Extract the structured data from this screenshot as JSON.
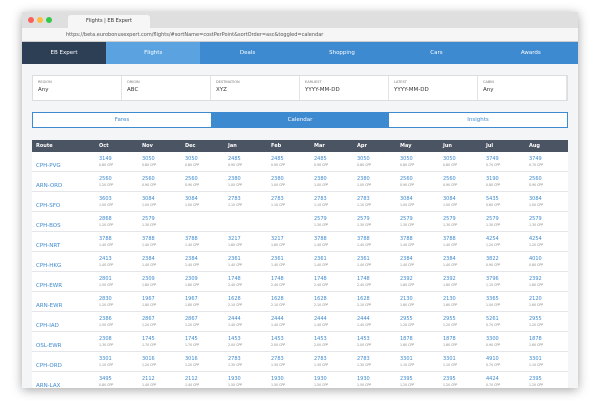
{
  "browser": {
    "tab_title": "Flights | EB Expert",
    "url": "https://beta.eurobonusexpert.com/flights/#sortName=costPerPoint&sortOrder=asc&toggled=calendar"
  },
  "nav": [
    "EB Expert",
    "Flights",
    "Deals",
    "Shopping",
    "Cars",
    "Awards"
  ],
  "filters": [
    {
      "label": "REGION",
      "value": "Any"
    },
    {
      "label": "ORIGIN",
      "value": "ABC"
    },
    {
      "label": "DESTINATION",
      "value": "XYZ"
    },
    {
      "label": "EARLIEST",
      "value": "YYYY-MM-DD"
    },
    {
      "label": "LATEST",
      "value": "YYYY-MM-DD"
    },
    {
      "label": "CABIN",
      "value": "Any"
    }
  ],
  "tabs": [
    "Fares",
    "Calendar",
    "Insights"
  ],
  "table": {
    "header": [
      "Route",
      "Oct",
      "Nov",
      "Dec",
      "Jan",
      "Feb",
      "Mar",
      "Apr",
      "May",
      "Jun",
      "Jul",
      "Aug"
    ],
    "rows": [
      {
        "route": "CPH-PVG",
        "cells": [
          [
            "3149",
            "0.80 CPP"
          ],
          [
            "3050",
            "0.80 CPP"
          ],
          [
            "3050",
            "0.80 CPP"
          ],
          [
            "2485",
            "0.90 CPP"
          ],
          [
            "2485",
            "0.90 CPP"
          ],
          [
            "2485",
            "0.90 CPP"
          ],
          [
            "3050",
            "0.80 CPP"
          ],
          [
            "3050",
            "0.80 CPP"
          ],
          [
            "3050",
            "0.80 CPP"
          ],
          [
            "3749",
            "0.70 CPP"
          ],
          [
            "3749",
            "0.70 CPP"
          ]
        ]
      },
      {
        "route": "ARN-ORD",
        "cells": [
          [
            "2560",
            "1.20 CPP"
          ],
          [
            "2560",
            "0.90 CPP"
          ],
          [
            "2560",
            "0.90 CPP"
          ],
          [
            "2380",
            "1.00 CPP"
          ],
          [
            "2380",
            "1.00 CPP"
          ],
          [
            "2380",
            "1.00 CPP"
          ],
          [
            "2380",
            "1.00 CPP"
          ],
          [
            "2560",
            "0.90 CPP"
          ],
          [
            "2560",
            "0.90 CPP"
          ],
          [
            "3190",
            "0.80 CPP"
          ],
          [
            "2560",
            "0.90 CPP"
          ]
        ]
      },
      {
        "route": "CPH-SFO",
        "cells": [
          [
            "3603",
            "1.00 CPP"
          ],
          [
            "3084",
            "1.00 CPP"
          ],
          [
            "3084",
            "1.00 CPP"
          ],
          [
            "2783",
            "1.10 CPP"
          ],
          [
            "2783",
            "1.10 CPP"
          ],
          [
            "2783",
            "1.10 CPP"
          ],
          [
            "2783",
            "1.10 CPP"
          ],
          [
            "3084",
            "1.00 CPP"
          ],
          [
            "3084",
            "1.00 CPP"
          ],
          [
            "5435",
            "0.60 CPP"
          ],
          [
            "3084",
            "1.00 CPP"
          ]
        ]
      },
      {
        "route": "CPH-BOS",
        "cells": [
          [
            "2868",
            "1.20 CPP"
          ],
          [
            "2579",
            "1.30 CPP"
          ],
          null,
          null,
          null,
          [
            "2579",
            "1.30 CPP"
          ],
          [
            "2579",
            "1.30 CPP"
          ],
          [
            "2579",
            "1.30 CPP"
          ],
          [
            "2579",
            "1.30 CPP"
          ],
          [
            "2579",
            "1.30 CPP"
          ],
          [
            "2579",
            "1.30 CPP"
          ]
        ]
      },
      {
        "route": "CPH-NRT",
        "cells": [
          [
            "3788",
            "1.40 CPP"
          ],
          [
            "3788",
            "1.40 CPP"
          ],
          [
            "3788",
            "1.40 CPP"
          ],
          [
            "3217",
            "1.60 CPP"
          ],
          [
            "3217",
            "1.60 CPP"
          ],
          [
            "3788",
            "1.40 CPP"
          ],
          [
            "3788",
            "1.40 CPP"
          ],
          [
            "3788",
            "1.40 CPP"
          ],
          [
            "3788",
            "1.40 CPP"
          ],
          [
            "4254",
            "1.20 CPP"
          ],
          [
            "4254",
            "1.20 CPP"
          ]
        ]
      },
      {
        "route": "CPH-HKG",
        "cells": [
          [
            "2413",
            "1.40 CPP"
          ],
          [
            "2384",
            "1.40 CPP"
          ],
          [
            "2384",
            "1.40 CPP"
          ],
          [
            "2361",
            "1.40 CPP"
          ],
          [
            "2361",
            "1.40 CPP"
          ],
          [
            "2361",
            "1.40 CPP"
          ],
          [
            "2361",
            "1.40 CPP"
          ],
          [
            "2384",
            "1.40 CPP"
          ],
          [
            "2384",
            "1.40 CPP"
          ],
          [
            "3822",
            "0.90 CPP"
          ],
          [
            "4010",
            "0.80 CPP"
          ]
        ]
      },
      {
        "route": "CPH-EWR",
        "cells": [
          [
            "2801",
            "1.50 CPP"
          ],
          [
            "2309",
            "1.80 CPP"
          ],
          [
            "2309",
            "1.80 CPP"
          ],
          [
            "1748",
            "2.40 CPP"
          ],
          [
            "1748",
            "2.40 CPP"
          ],
          [
            "1748",
            "2.40 CPP"
          ],
          [
            "1748",
            "2.40 CPP"
          ],
          [
            "2392",
            "1.80 CPP"
          ],
          [
            "2392",
            "1.80 CPP"
          ],
          [
            "3796",
            "1.10 CPP"
          ],
          [
            "2392",
            "1.80 CPP"
          ]
        ]
      },
      {
        "route": "ARN-EWR",
        "cells": [
          [
            "2830",
            "1.20 CPP"
          ],
          [
            "1967",
            "1.80 CPP"
          ],
          [
            "1967",
            "1.80 CPP"
          ],
          [
            "1628",
            "2.10 CPP"
          ],
          [
            "1628",
            "2.10 CPP"
          ],
          [
            "1628",
            "2.10 CPP"
          ],
          [
            "1628",
            "2.10 CPP"
          ],
          [
            "2130",
            "1.60 CPP"
          ],
          [
            "2130",
            "1.60 CPP"
          ],
          [
            "3365",
            "1.00 CPP"
          ],
          [
            "2120",
            "1.60 CPP"
          ]
        ]
      },
      {
        "route": "CPH-IAD",
        "cells": [
          [
            "2386",
            "1.50 CPP"
          ],
          [
            "2867",
            "1.20 CPP"
          ],
          [
            "2867",
            "1.20 CPP"
          ],
          [
            "2444",
            "1.40 CPP"
          ],
          [
            "2444",
            "1.40 CPP"
          ],
          [
            "2444",
            "1.40 CPP"
          ],
          [
            "2444",
            "1.40 CPP"
          ],
          [
            "2955",
            "1.20 CPP"
          ],
          [
            "2955",
            "1.20 CPP"
          ],
          [
            "5261",
            "0.70 CPP"
          ],
          [
            "2955",
            "1.20 CPP"
          ]
        ]
      },
      {
        "route": "OSL-EWR",
        "cells": [
          [
            "2308",
            "1.30 CPP"
          ],
          [
            "1745",
            "1.70 CPP"
          ],
          [
            "1745",
            "1.70 CPP"
          ],
          [
            "1453",
            "2.00 CPP"
          ],
          [
            "1453",
            "2.00 CPP"
          ],
          [
            "1453",
            "2.00 CPP"
          ],
          [
            "1453",
            "2.00 CPP"
          ],
          [
            "1878",
            "1.60 CPP"
          ],
          [
            "1878",
            "1.60 CPP"
          ],
          [
            "3300",
            "0.90 CPP"
          ],
          [
            "1878",
            "1.60 CPP"
          ]
        ]
      },
      {
        "route": "CPH-ORD",
        "cells": [
          [
            "3301",
            "1.10 CPP"
          ],
          [
            "3016",
            "1.20 CPP"
          ],
          [
            "3016",
            "1.20 CPP"
          ],
          [
            "2783",
            "1.30 CPP"
          ],
          [
            "2783",
            "1.30 CPP"
          ],
          [
            "2783",
            "1.30 CPP"
          ],
          [
            "2783",
            "1.30 CPP"
          ],
          [
            "3301",
            "1.10 CPP"
          ],
          [
            "3301",
            "1.10 CPP"
          ],
          [
            "4910",
            "0.70 CPP"
          ],
          [
            "3301",
            "1.10 CPP"
          ]
        ]
      },
      {
        "route": "ARN-LAX",
        "cells": [
          [
            "3495",
            "0.80 CPP"
          ],
          [
            "2112",
            "1.40 CPP"
          ],
          [
            "2112",
            "1.40 CPP"
          ],
          [
            "1930",
            "1.50 CPP"
          ],
          [
            "1930",
            "1.50 CPP"
          ],
          [
            "1930",
            "1.50 CPP"
          ],
          [
            "1930",
            "1.50 CPP"
          ],
          [
            "2395",
            "1.20 CPP"
          ],
          [
            "2395",
            "1.20 CPP"
          ],
          [
            "4424",
            "0.70 CPP"
          ],
          [
            "2395",
            "1.20 CPP"
          ]
        ]
      }
    ]
  }
}
